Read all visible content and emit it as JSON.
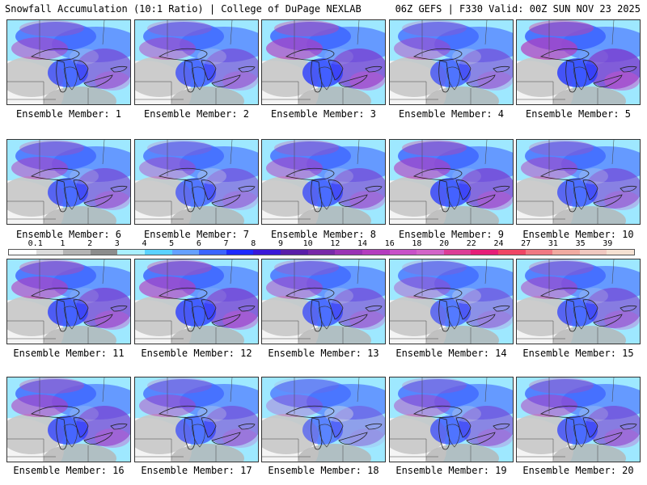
{
  "header": {
    "title": "Snowfall Accumulation (10:1 Ratio) | College of DuPage NEXLAB",
    "run_info": "06Z GEFS | F330 Valid: 00Z SUN NOV 23 2025"
  },
  "members": [
    {
      "label": "Ensemble Member: 1",
      "intensity": 0.55
    },
    {
      "label": "Ensemble Member: 2",
      "intensity": 0.5
    },
    {
      "label": "Ensemble Member: 3",
      "intensity": 0.75
    },
    {
      "label": "Ensemble Member: 4",
      "intensity": 0.45
    },
    {
      "label": "Ensemble Member: 5",
      "intensity": 0.85
    },
    {
      "label": "Ensemble Member: 6",
      "intensity": 0.55
    },
    {
      "label": "Ensemble Member: 7",
      "intensity": 0.4
    },
    {
      "label": "Ensemble Member: 8",
      "intensity": 0.55
    },
    {
      "label": "Ensemble Member: 9",
      "intensity": 0.7
    },
    {
      "label": "Ensemble Member: 10",
      "intensity": 0.5
    },
    {
      "label": "Ensemble Member: 11",
      "intensity": 0.7
    },
    {
      "label": "Ensemble Member: 12",
      "intensity": 0.75
    },
    {
      "label": "Ensemble Member: 13",
      "intensity": 0.5
    },
    {
      "label": "Ensemble Member: 14",
      "intensity": 0.35
    },
    {
      "label": "Ensemble Member: 15",
      "intensity": 0.55
    },
    {
      "label": "Ensemble Member: 16",
      "intensity": 0.65
    },
    {
      "label": "Ensemble Member: 17",
      "intensity": 0.45
    },
    {
      "label": "Ensemble Member: 18",
      "intensity": 0.2
    },
    {
      "label": "Ensemble Member: 19",
      "intensity": 0.45
    },
    {
      "label": "Ensemble Member: 20",
      "intensity": 0.55
    }
  ],
  "colorbar": {
    "ticks": [
      "0.1",
      "1",
      "2",
      "3",
      "4",
      "5",
      "6",
      "7",
      "8",
      "9",
      "10",
      "12",
      "14",
      "16",
      "18",
      "20",
      "22",
      "24",
      "27",
      "31",
      "35",
      "39"
    ],
    "colors": [
      "#ffffff",
      "#dcdcdc",
      "#b4b4b4",
      "#8c8c8c",
      "#aaf0ff",
      "#5ad2ff",
      "#64a0ff",
      "#3c64ff",
      "#1e2aff",
      "#3a18d8",
      "#5a1ea8",
      "#7828a8",
      "#9a32b4",
      "#b43cbe",
      "#c850c8",
      "#d264c8",
      "#dc3c96",
      "#e61e78",
      "#f04664",
      "#f07882",
      "#f0aaa0",
      "#f0c8c0",
      "#f5e1d2"
    ]
  }
}
